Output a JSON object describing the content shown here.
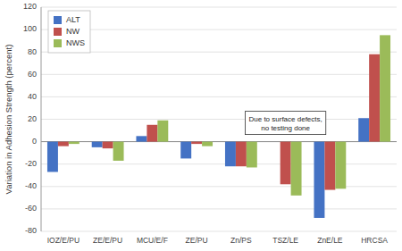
{
  "chart_data": {
    "type": "bar",
    "categories": [
      "IOZ/E/PU",
      "ZE/E/PU",
      "MCU/E/F",
      "ZE/PU",
      "Zn/PS",
      "TSZ/LE",
      "ZnE/LE",
      "HRCSA"
    ],
    "series": [
      {
        "name": "ALT",
        "color": "#4472C4",
        "values": [
          -27,
          -5,
          5,
          -15,
          -22,
          null,
          -68,
          21
        ]
      },
      {
        "name": "NW",
        "color": "#C0504D",
        "values": [
          -4,
          -6,
          15,
          -2,
          -22,
          -38,
          -43,
          78
        ]
      },
      {
        "name": "NWS",
        "color": "#9BBB59",
        "values": [
          -2,
          -17,
          19,
          -4,
          -23,
          -48,
          -42,
          95
        ]
      }
    ],
    "ylabel": "Variation in Adhesion Strength (percent)",
    "annotation": "Due to surface defects,\nno testing done",
    "ylim": [
      -80,
      120
    ],
    "yticks": [
      -80,
      -60,
      -40,
      -20,
      0,
      20,
      40,
      60,
      80,
      100,
      120
    ],
    "grid": true,
    "legend": "upper left"
  }
}
